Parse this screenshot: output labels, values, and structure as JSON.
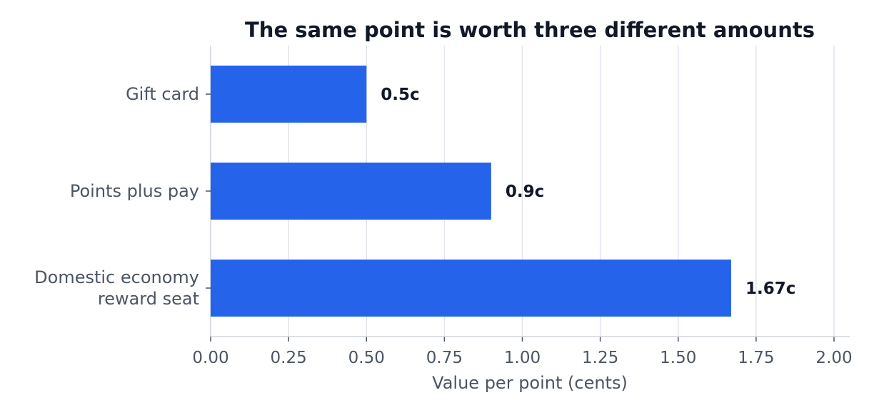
{
  "chart_data": {
    "type": "bar",
    "orientation": "horizontal",
    "title": "The same point is worth three different amounts",
    "xlabel": "Value per point (cents)",
    "ylabel": "",
    "categories": [
      [
        "Gift card"
      ],
      [
        "Points plus pay"
      ],
      [
        "Domestic economy",
        "reward seat"
      ]
    ],
    "values": [
      0.5,
      0.9,
      1.67
    ],
    "value_labels": [
      "0.5c",
      "0.9c",
      "1.67c"
    ],
    "xlim": [
      0,
      2.05
    ],
    "xticks": [
      0.0,
      0.25,
      0.5,
      0.75,
      1.0,
      1.25,
      1.5,
      1.75,
      2.0
    ],
    "xtick_labels": [
      "0.00",
      "0.25",
      "0.50",
      "0.75",
      "1.00",
      "1.25",
      "1.50",
      "1.75",
      "2.00"
    ],
    "grid": "vertical",
    "legend": "none",
    "colors": {
      "bar": "#2563eb",
      "title": "#111827",
      "value_label": "#111827",
      "tick_label": "#4b5563",
      "axis_label": "#4b5563",
      "grid": "#e0e4ef",
      "axis": "#d1d5db"
    }
  }
}
